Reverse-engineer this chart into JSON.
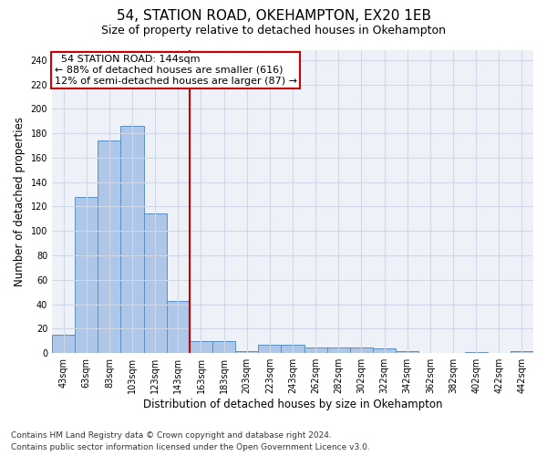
{
  "title": "54, STATION ROAD, OKEHAMPTON, EX20 1EB",
  "subtitle": "Size of property relative to detached houses in Okehampton",
  "xlabel": "Distribution of detached houses by size in Okehampton",
  "ylabel": "Number of detached properties",
  "footnote1": "Contains HM Land Registry data © Crown copyright and database right 2024.",
  "footnote2": "Contains public sector information licensed under the Open Government Licence v3.0.",
  "bar_labels": [
    "43sqm",
    "63sqm",
    "83sqm",
    "103sqm",
    "123sqm",
    "143sqm",
    "163sqm",
    "183sqm",
    "203sqm",
    "223sqm",
    "243sqm",
    "262sqm",
    "282sqm",
    "302sqm",
    "322sqm",
    "342sqm",
    "362sqm",
    "382sqm",
    "402sqm",
    "422sqm",
    "442sqm"
  ],
  "bar_values": [
    15,
    128,
    174,
    186,
    114,
    43,
    10,
    10,
    2,
    7,
    7,
    5,
    5,
    5,
    4,
    2,
    0,
    0,
    1,
    0,
    2
  ],
  "bar_color": "#aec6e8",
  "bar_edge_color": "#5a8fc2",
  "vline_x": 5.5,
  "vline_color": "#cc0000",
  "annotation_text": "  54 STATION ROAD: 144sqm  \n← 88% of detached houses are smaller (616)\n12% of semi-detached houses are larger (87) →",
  "annotation_box_color": "#ffffff",
  "annotation_box_edge": "#cc0000",
  "ylim": [
    0,
    248
  ],
  "yticks": [
    0,
    20,
    40,
    60,
    80,
    100,
    120,
    140,
    160,
    180,
    200,
    220,
    240
  ],
  "grid_color": "#d0d8e8",
  "background_color": "#eef2f8",
  "title_fontsize": 11,
  "subtitle_fontsize": 9,
  "axis_label_fontsize": 8.5,
  "tick_fontsize": 7,
  "annotation_fontsize": 8,
  "footnote_fontsize": 6.5
}
